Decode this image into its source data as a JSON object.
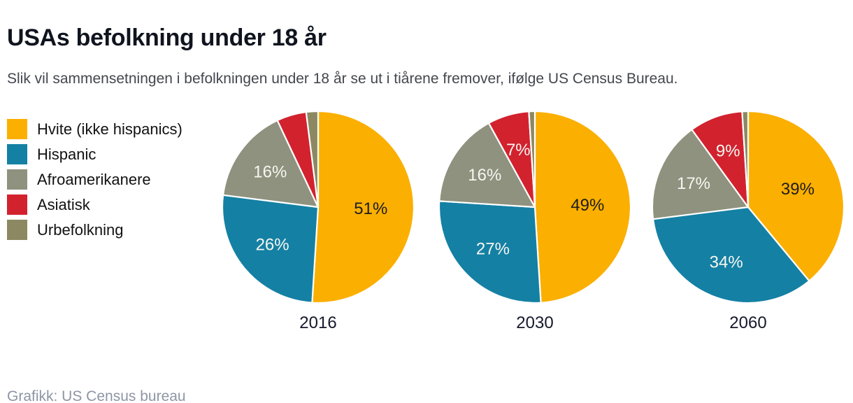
{
  "header": {
    "title": "USAs befolkning under 18 år",
    "subtitle": "Slik vil sammensetningen i befolkningen under 18 år se ut i tiårene fremover, ifølge US Census Bureau."
  },
  "footer": {
    "credit": "Grafikk: US Census bureau"
  },
  "chart_data": {
    "type": "pie",
    "legend_position": "left",
    "start_angle": "top",
    "direction": "clockwise",
    "series": [
      {
        "name": "Hvite (ikke hispanics)",
        "color": "#FBAF00",
        "label_color": "#1d1d1b"
      },
      {
        "name": "Hispanic",
        "color": "#1480A4",
        "label_color": "#f7f6f1"
      },
      {
        "name": "Afroamerikanere",
        "color": "#8E927E",
        "label_color": "#f7f6f1"
      },
      {
        "name": "Asiatisk",
        "color": "#D2222E",
        "label_color": "#f7f6f1"
      },
      {
        "name": "Urbefolkning",
        "color": "#8C8962",
        "label_color": "#f7f6f1"
      }
    ],
    "charts": [
      {
        "year": "2016",
        "values": [
          51,
          26,
          16,
          5,
          2
        ],
        "display_labels": [
          "51%",
          "26%",
          "16%",
          "",
          ""
        ]
      },
      {
        "year": "2030",
        "values": [
          49,
          27,
          16,
          7,
          1
        ],
        "display_labels": [
          "49%",
          "27%",
          "16%",
          "7%",
          ""
        ]
      },
      {
        "year": "2060",
        "values": [
          39,
          34,
          17,
          9,
          1
        ],
        "display_labels": [
          "39%",
          "34%",
          "17%",
          "9%",
          ""
        ]
      }
    ]
  }
}
